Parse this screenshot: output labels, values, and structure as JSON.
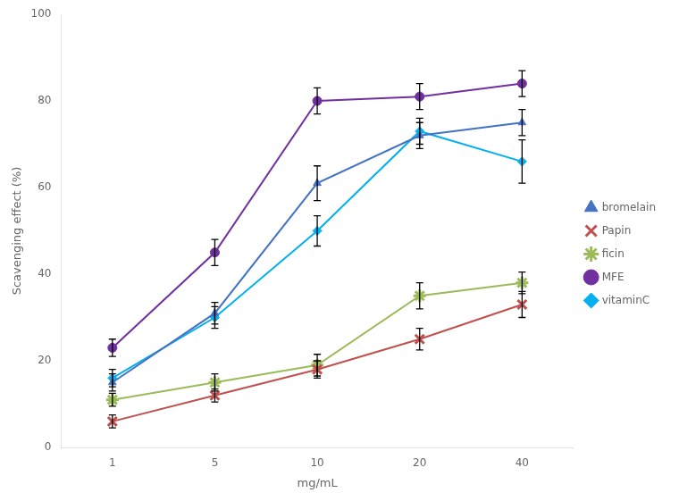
{
  "chart_data": {
    "type": "line",
    "categories": [
      "1",
      "5",
      "10",
      "20",
      "40"
    ],
    "xlabel": "mg/mL",
    "ylabel": "Scavenging effect (%)",
    "series": [
      {
        "name": "bromelain",
        "color": "#4472C4",
        "marker": "triangle",
        "values": [
          15,
          31,
          61,
          72,
          75
        ],
        "errors": [
          2,
          2.5,
          4,
          3,
          3
        ]
      },
      {
        "name": "Papin",
        "color": "#C0504D",
        "marker": "plus",
        "values": [
          6,
          12,
          18,
          25,
          33
        ],
        "errors": [
          1.5,
          1.5,
          2,
          2.5,
          3
        ]
      },
      {
        "name": "ficin",
        "color": "#9BBB59",
        "marker": "star",
        "values": [
          11,
          15,
          19,
          35,
          38
        ],
        "errors": [
          1.5,
          2,
          2.5,
          3,
          2.5
        ]
      },
      {
        "name": "MFE",
        "color": "#7030A0",
        "marker": "circle",
        "values": [
          23,
          45,
          80,
          81,
          84
        ],
        "errors": [
          2,
          3,
          3,
          3,
          3
        ]
      },
      {
        "name": "vitaminC",
        "color": "#00B0F0",
        "marker": "diamond",
        "values": [
          16,
          30,
          50,
          73,
          66
        ],
        "errors": [
          2,
          2.5,
          3.5,
          3,
          5
        ]
      }
    ],
    "ylim": [
      0,
      100
    ],
    "yticks": [
      0,
      20,
      40,
      60,
      80,
      100
    ],
    "grid": false,
    "legend": "right"
  }
}
